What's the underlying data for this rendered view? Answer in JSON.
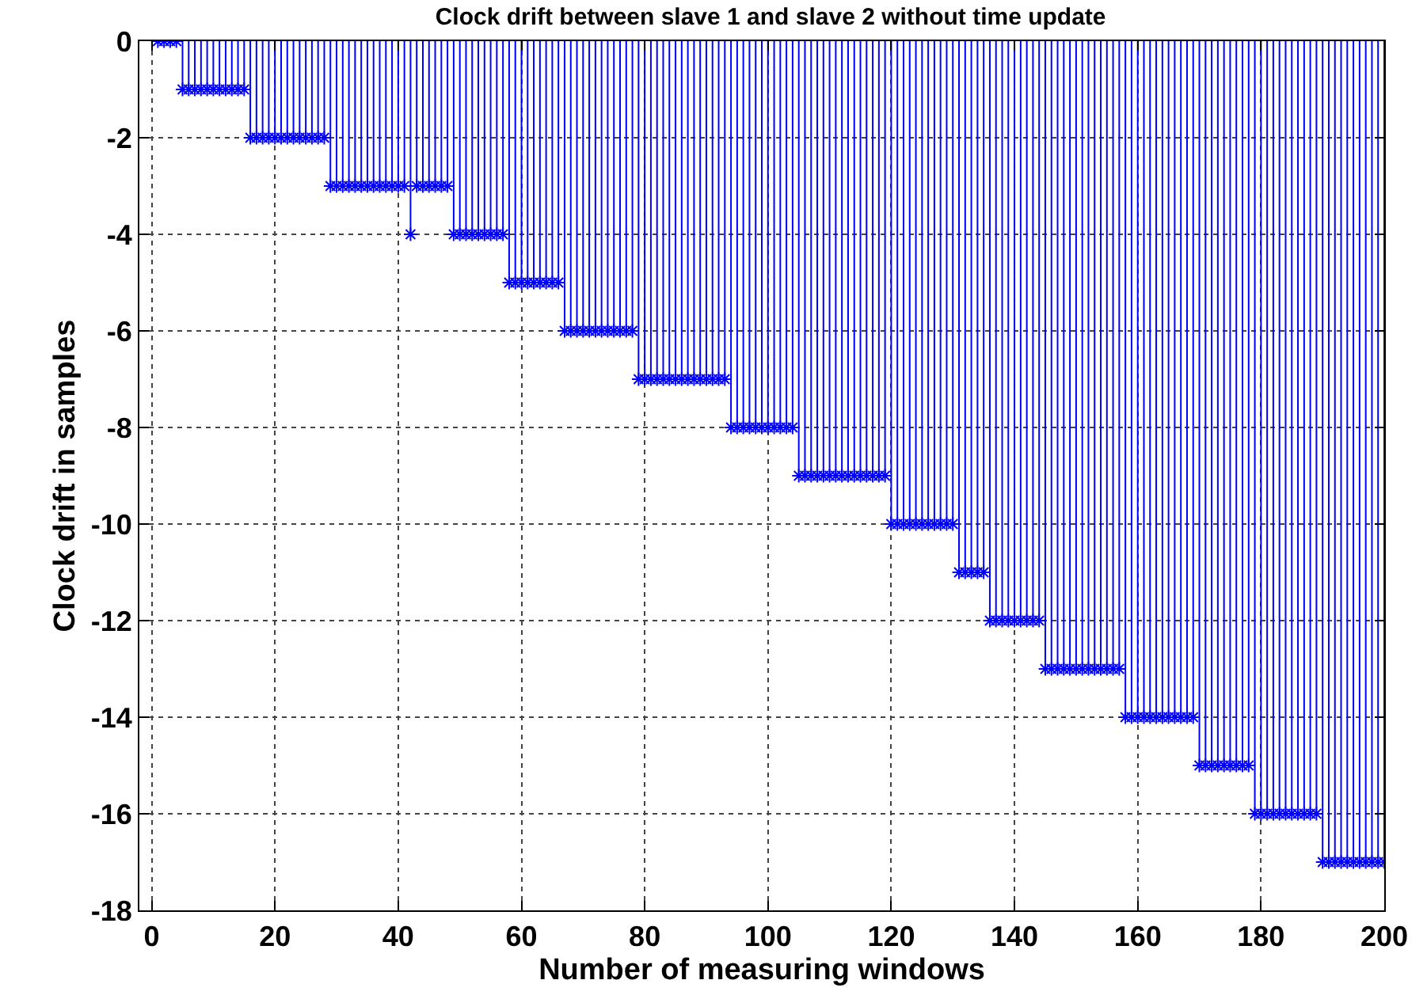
{
  "chart_data": {
    "type": "lollipop",
    "title": "Clock drift between slave 1 and slave 2 without time update",
    "xlabel": "Number of measuring windows",
    "ylabel": "Clock drift in samples",
    "x": [
      1,
      2,
      3,
      4,
      5,
      6,
      7,
      8,
      9,
      10,
      11,
      12,
      13,
      14,
      15,
      16,
      17,
      18,
      19,
      20,
      21,
      22,
      23,
      24,
      25,
      26,
      27,
      28,
      29,
      30,
      31,
      32,
      33,
      34,
      35,
      36,
      37,
      38,
      39,
      40,
      41,
      42,
      43,
      44,
      45,
      46,
      47,
      48,
      49,
      50,
      51,
      52,
      53,
      54,
      55,
      56,
      57,
      58,
      59,
      60,
      61,
      62,
      63,
      64,
      65,
      66,
      67,
      68,
      69,
      70,
      71,
      72,
      73,
      74,
      75,
      76,
      77,
      78,
      79,
      80,
      81,
      82,
      83,
      84,
      85,
      86,
      87,
      88,
      89,
      90,
      91,
      92,
      93,
      94,
      95,
      96,
      97,
      98,
      99,
      100,
      101,
      102,
      103,
      104,
      105,
      106,
      107,
      108,
      109,
      110,
      111,
      112,
      113,
      114,
      115,
      116,
      117,
      118,
      119,
      120,
      121,
      122,
      123,
      124,
      125,
      126,
      127,
      128,
      129,
      130,
      131,
      132,
      133,
      134,
      135,
      136,
      137,
      138,
      139,
      140,
      141,
      142,
      143,
      144,
      145,
      146,
      147,
      148,
      149,
      150,
      151,
      152,
      153,
      154,
      155,
      156,
      157,
      158,
      159,
      160,
      161,
      162,
      163,
      164,
      165,
      166,
      167,
      168,
      169,
      170,
      171,
      172,
      173,
      174,
      175,
      176,
      177,
      178,
      179,
      180,
      181,
      182,
      183,
      184,
      185,
      186,
      187,
      188,
      189,
      190,
      191,
      192,
      193,
      194,
      195,
      196,
      197,
      198,
      199,
      200
    ],
    "values": [
      0,
      0,
      0,
      0,
      -1,
      -1,
      -1,
      -1,
      -1,
      -1,
      -1,
      -1,
      -1,
      -1,
      -1,
      -2,
      -2,
      -2,
      -2,
      -2,
      -2,
      -2,
      -2,
      -2,
      -2,
      -2,
      -2,
      -2,
      -3,
      -3,
      -3,
      -3,
      -3,
      -3,
      -3,
      -3,
      -3,
      -3,
      -3,
      -3,
      -3,
      -4,
      -3,
      -3,
      -3,
      -3,
      -3,
      -3,
      -4,
      -4,
      -4,
      -4,
      -4,
      -4,
      -4,
      -4,
      -4,
      -5,
      -5,
      -5,
      -5,
      -5,
      -5,
      -5,
      -5,
      -5,
      -6,
      -6,
      -6,
      -6,
      -6,
      -6,
      -6,
      -6,
      -6,
      -6,
      -6,
      -6,
      -7,
      -7,
      -7,
      -7,
      -7,
      -7,
      -7,
      -7,
      -7,
      -7,
      -7,
      -7,
      -7,
      -7,
      -7,
      -8,
      -8,
      -8,
      -8,
      -8,
      -8,
      -8,
      -8,
      -8,
      -8,
      -8,
      -9,
      -9,
      -9,
      -9,
      -9,
      -9,
      -9,
      -9,
      -9,
      -9,
      -9,
      -9,
      -9,
      -9,
      -9,
      -10,
      -10,
      -10,
      -10,
      -10,
      -10,
      -10,
      -10,
      -10,
      -10,
      -10,
      -11,
      -11,
      -11,
      -11,
      -11,
      -12,
      -12,
      -12,
      -12,
      -12,
      -12,
      -12,
      -12,
      -12,
      -13,
      -13,
      -13,
      -13,
      -13,
      -13,
      -13,
      -13,
      -13,
      -13,
      -13,
      -13,
      -13,
      -14,
      -14,
      -14,
      -14,
      -14,
      -14,
      -14,
      -14,
      -14,
      -14,
      -14,
      -14,
      -15,
      -15,
      -15,
      -15,
      -15,
      -15,
      -15,
      -15,
      -15,
      -16,
      -16,
      -16,
      -16,
      -16,
      -16,
      -16,
      -16,
      -16,
      -16,
      -16,
      -17,
      -17,
      -17,
      -17,
      -17,
      -17,
      -17,
      -17,
      -17,
      -17,
      -17
    ],
    "color": "#0000ff",
    "marker": "cross",
    "grid": true,
    "xlim": [
      -2,
      200
    ],
    "xticks": [
      0,
      20,
      40,
      60,
      80,
      100,
      120,
      140,
      160,
      180,
      200
    ],
    "ylim": [
      -18,
      0
    ],
    "yticks": [
      0,
      -2,
      -4,
      -6,
      -8,
      -10,
      -12,
      -14,
      -16,
      -18
    ]
  }
}
